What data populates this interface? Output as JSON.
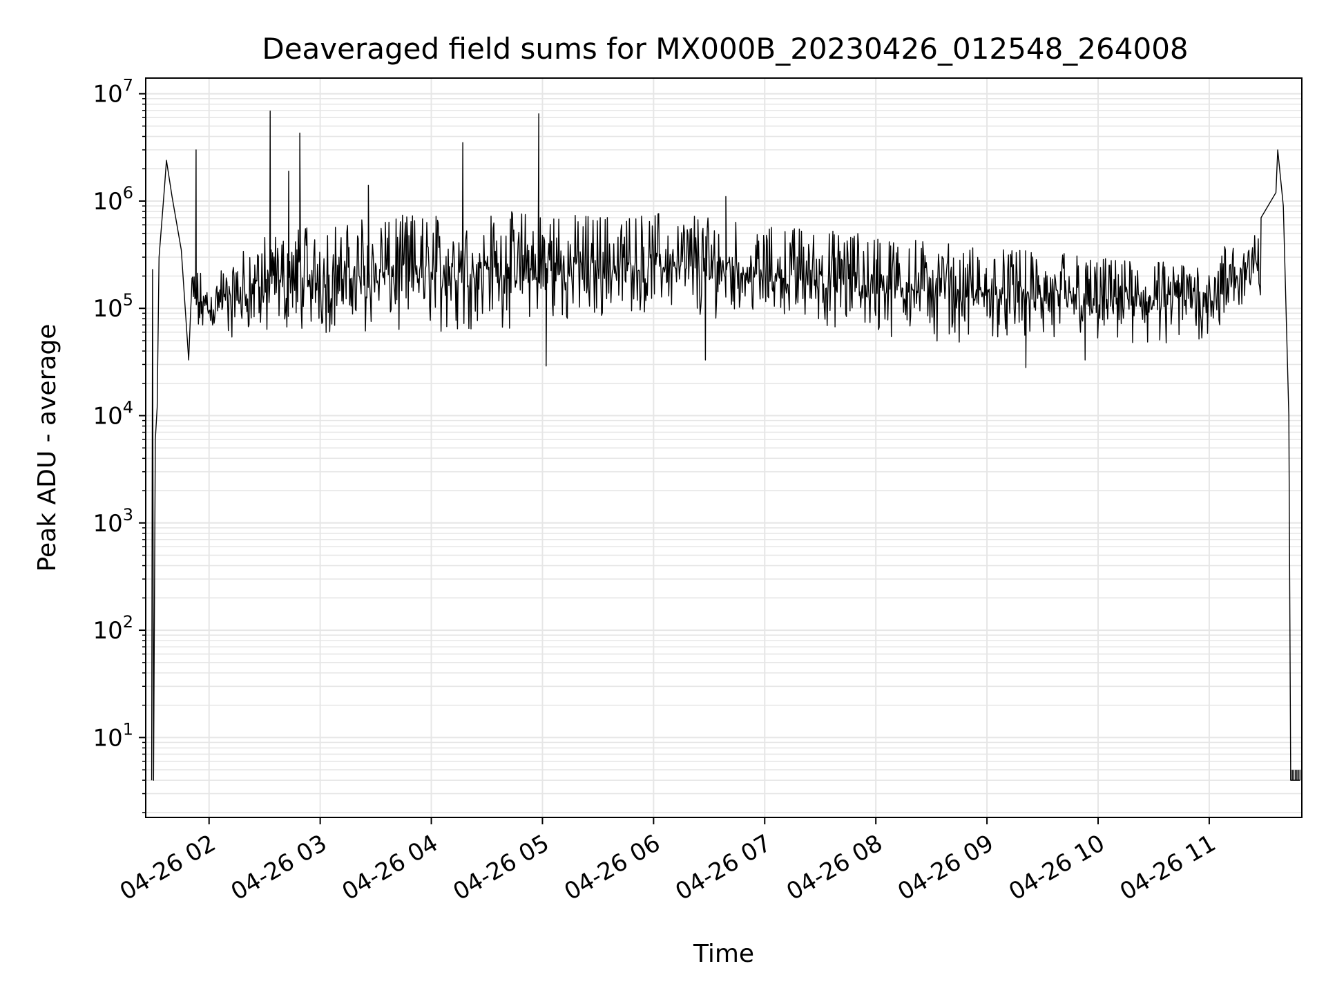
{
  "chart_data": {
    "type": "line",
    "title": "Deaveraged field sums for MX000B_20230426_012548_264008",
    "xlabel": "Time",
    "ylabel": "Peak ADU - average",
    "y_scale": "log",
    "grid": true,
    "legend": "none",
    "line_color": "#000000",
    "grid_color": "#e6e6e6",
    "ylim": [
      1.8,
      14000000
    ],
    "xlim": [
      "2023-04-26T01:25:48",
      "2023-04-26T11:50:00"
    ],
    "x_ticks": [
      {
        "label": "04-26 02",
        "value": "2023-04-26T02:00:00"
      },
      {
        "label": "04-26 03",
        "value": "2023-04-26T03:00:00"
      },
      {
        "label": "04-26 04",
        "value": "2023-04-26T04:00:00"
      },
      {
        "label": "04-26 05",
        "value": "2023-04-26T05:00:00"
      },
      {
        "label": "04-26 06",
        "value": "2023-04-26T06:00:00"
      },
      {
        "label": "04-26 07",
        "value": "2023-04-26T07:00:00"
      },
      {
        "label": "04-26 08",
        "value": "2023-04-26T08:00:00"
      },
      {
        "label": "04-26 09",
        "value": "2023-04-26T09:00:00"
      },
      {
        "label": "04-26 10",
        "value": "2023-04-26T10:00:00"
      },
      {
        "label": "04-26 11",
        "value": "2023-04-26T11:00:00"
      }
    ],
    "y_ticks": [
      {
        "base": "10",
        "exp": "1",
        "value": 10
      },
      {
        "base": "10",
        "exp": "2",
        "value": 100
      },
      {
        "base": "10",
        "exp": "3",
        "value": 1000
      },
      {
        "base": "10",
        "exp": "4",
        "value": 10000
      },
      {
        "base": "10",
        "exp": "5",
        "value": 100000
      },
      {
        "base": "10",
        "exp": "6",
        "value": 1000000
      },
      {
        "base": "10",
        "exp": "7",
        "value": 10000000
      }
    ],
    "series": [
      {
        "envelope": {
          "x": [
            "2023-04-26T01:30:00",
            "2023-04-26T01:45:00",
            "2023-04-26T02:00:00",
            "2023-04-26T02:30:00",
            "2023-04-26T03:00:00",
            "2023-04-26T03:30:00",
            "2023-04-26T04:00:00",
            "2023-04-26T04:30:00",
            "2023-04-26T05:00:00",
            "2023-04-26T05:30:00",
            "2023-04-26T06:00:00",
            "2023-04-26T06:30:00",
            "2023-04-26T07:00:00",
            "2023-04-26T07:30:00",
            "2023-04-26T08:00:00",
            "2023-04-26T08:30:00",
            "2023-04-26T09:00:00",
            "2023-04-26T09:30:00",
            "2023-04-26T10:00:00",
            "2023-04-26T10:30:00",
            "2023-04-26T11:00:00",
            "2023-04-26T11:20:00"
          ],
          "low": [
            300000,
            80000,
            50000,
            55000,
            55000,
            60000,
            60000,
            60000,
            60000,
            70000,
            90000,
            80000,
            70000,
            65000,
            55000,
            50000,
            45000,
            45000,
            45000,
            45000,
            50000,
            80000
          ],
          "high": [
            1400000,
            300000,
            200000,
            500000,
            600000,
            750000,
            750000,
            800000,
            800000,
            750000,
            800000,
            700000,
            600000,
            550000,
            500000,
            420000,
            380000,
            350000,
            300000,
            280000,
            300000,
            600000
          ]
        },
        "samples": [
          {
            "x": "2023-04-26T01:29:00",
            "y": 4
          },
          {
            "x": "2023-04-26T01:29:30",
            "y": 230000
          },
          {
            "x": "2023-04-26T01:30:00",
            "y": 4
          },
          {
            "x": "2023-04-26T01:31:00",
            "y": 6000
          },
          {
            "x": "2023-04-26T01:32:00",
            "y": 12000
          },
          {
            "x": "2023-04-26T01:33:00",
            "y": 300000
          },
          {
            "x": "2023-04-26T01:36:00",
            "y": 1400000
          },
          {
            "x": "2023-04-26T01:40:00",
            "y": 1100000
          },
          {
            "x": "2023-04-26T01:45:00",
            "y": 350000
          },
          {
            "x": "2023-04-26T01:50:00",
            "y": 90000
          },
          {
            "x": "2023-04-26T11:28:00",
            "y": 700000
          },
          {
            "x": "2023-04-26T11:36:00",
            "y": 1200000
          },
          {
            "x": "2023-04-26T11:40:00",
            "y": 900000
          },
          {
            "x": "2023-04-26T11:43:00",
            "y": 10000
          },
          {
            "x": "2023-04-26T11:44:00",
            "y": 4
          },
          {
            "x": "2023-04-26T11:49:00",
            "y": 4
          }
        ],
        "spikes": [
          {
            "x": "2023-04-26T01:37:00",
            "y": 2400000
          },
          {
            "x": "2023-04-26T01:53:00",
            "y": 3000000
          },
          {
            "x": "2023-04-26T02:33:00",
            "y": 6900000
          },
          {
            "x": "2023-04-26T02:43:00",
            "y": 1900000
          },
          {
            "x": "2023-04-26T02:49:00",
            "y": 4300000
          },
          {
            "x": "2023-04-26T03:26:00",
            "y": 1400000
          },
          {
            "x": "2023-04-26T04:17:00",
            "y": 3500000
          },
          {
            "x": "2023-04-26T04:58:00",
            "y": 6500000
          },
          {
            "x": "2023-04-26T06:39:00",
            "y": 1100000
          },
          {
            "x": "2023-04-26T11:37:00",
            "y": 3000000
          }
        ],
        "dips": [
          {
            "x": "2023-04-26T01:49:00",
            "y": 33000
          },
          {
            "x": "2023-04-26T05:02:00",
            "y": 29000
          },
          {
            "x": "2023-04-26T06:28:00",
            "y": 33000
          },
          {
            "x": "2023-04-26T09:21:00",
            "y": 28000
          },
          {
            "x": "2023-04-26T09:53:00",
            "y": 33000
          }
        ]
      }
    ]
  }
}
